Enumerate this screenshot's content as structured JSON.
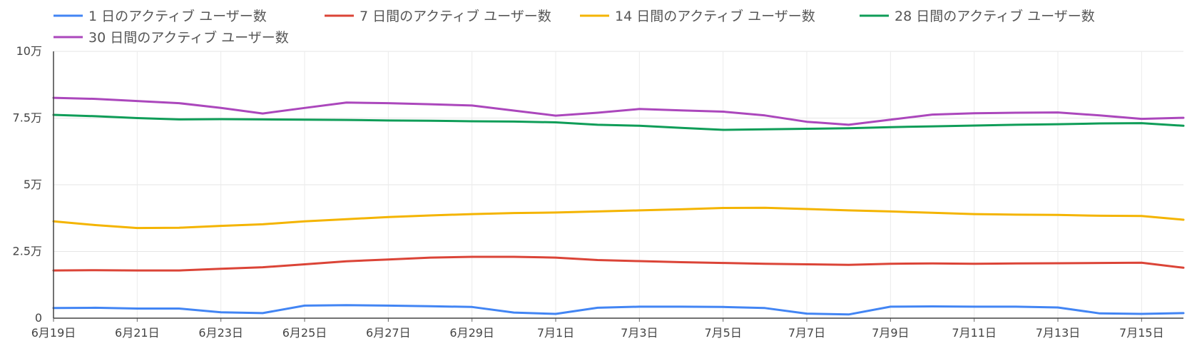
{
  "chart_data": {
    "type": "line",
    "title": "",
    "xlabel": "",
    "ylabel": "",
    "ylim": [
      0,
      100000
    ],
    "yticks": [
      0,
      25000,
      50000,
      75000,
      100000
    ],
    "ytick_labels": [
      "0",
      "2.5万",
      "5万",
      "7.5万",
      "10万"
    ],
    "x": [
      "6月19日",
      "6月20日",
      "6月21日",
      "6月22日",
      "6月23日",
      "6月24日",
      "6月25日",
      "6月26日",
      "6月27日",
      "6月28日",
      "6月29日",
      "6月30日",
      "7月1日",
      "7月2日",
      "7月3日",
      "7月4日",
      "7月5日",
      "7月6日",
      "7月7日",
      "7月8日",
      "7月9日",
      "7月10日",
      "7月11日",
      "7月12日",
      "7月13日",
      "7月14日",
      "7月15日",
      "7月16日"
    ],
    "xtick_labels": [
      "6月19日",
      "6月21日",
      "6月23日",
      "6月25日",
      "6月27日",
      "6月29日",
      "7月1日",
      "7月3日",
      "7月5日",
      "7月7日",
      "7月9日",
      "7月11日",
      "7月13日",
      "7月15日"
    ],
    "grid": true,
    "legend_position": "top",
    "series": [
      {
        "name": "1 日のアクティブ ユーザー数",
        "color": "#4285f4",
        "values": [
          3800,
          3900,
          3600,
          3600,
          2200,
          1900,
          4700,
          4900,
          4700,
          4500,
          4200,
          2100,
          1600,
          3900,
          4300,
          4300,
          4200,
          3800,
          1700,
          1400,
          4300,
          4400,
          4300,
          4300,
          4000,
          1800,
          1600,
          1900
        ]
      },
      {
        "name": "7 日間のアクティブ ユーザー数",
        "color": "#db4437",
        "values": [
          17900,
          18000,
          17900,
          17900,
          18500,
          19100,
          20200,
          21300,
          22000,
          22700,
          23000,
          23000,
          22700,
          21800,
          21400,
          21000,
          20700,
          20400,
          20200,
          20000,
          20400,
          20500,
          20400,
          20500,
          20600,
          20700,
          20800,
          18900
        ]
      },
      {
        "name": "14 日間のアクティブ ユーザー数",
        "color": "#f4b400",
        "values": [
          36300,
          34900,
          33800,
          33900,
          34600,
          35200,
          36300,
          37100,
          37900,
          38500,
          39000,
          39400,
          39600,
          40000,
          40400,
          40800,
          41300,
          41400,
          40900,
          40400,
          40000,
          39500,
          39000,
          38800,
          38700,
          38400,
          38300,
          36900
        ]
      },
      {
        "name": "28 日間のアクティブ ユーザー数",
        "color": "#0f9d58",
        "values": [
          76200,
          75700,
          75000,
          74500,
          74600,
          74500,
          74400,
          74300,
          74100,
          74000,
          73800,
          73700,
          73400,
          72500,
          72100,
          71300,
          70600,
          70800,
          71000,
          71200,
          71600,
          71900,
          72200,
          72500,
          72700,
          73000,
          73100,
          72100
        ]
      },
      {
        "name": "30 日間のアクティブ ユーザー数",
        "color": "#ab47bc",
        "values": [
          82600,
          82200,
          81400,
          80600,
          78800,
          76700,
          78800,
          80800,
          80600,
          80200,
          79700,
          77800,
          75900,
          77000,
          78400,
          77900,
          77400,
          76000,
          73600,
          72500,
          74400,
          76300,
          76800,
          77000,
          77100,
          76000,
          74700,
          75100
        ]
      }
    ]
  }
}
